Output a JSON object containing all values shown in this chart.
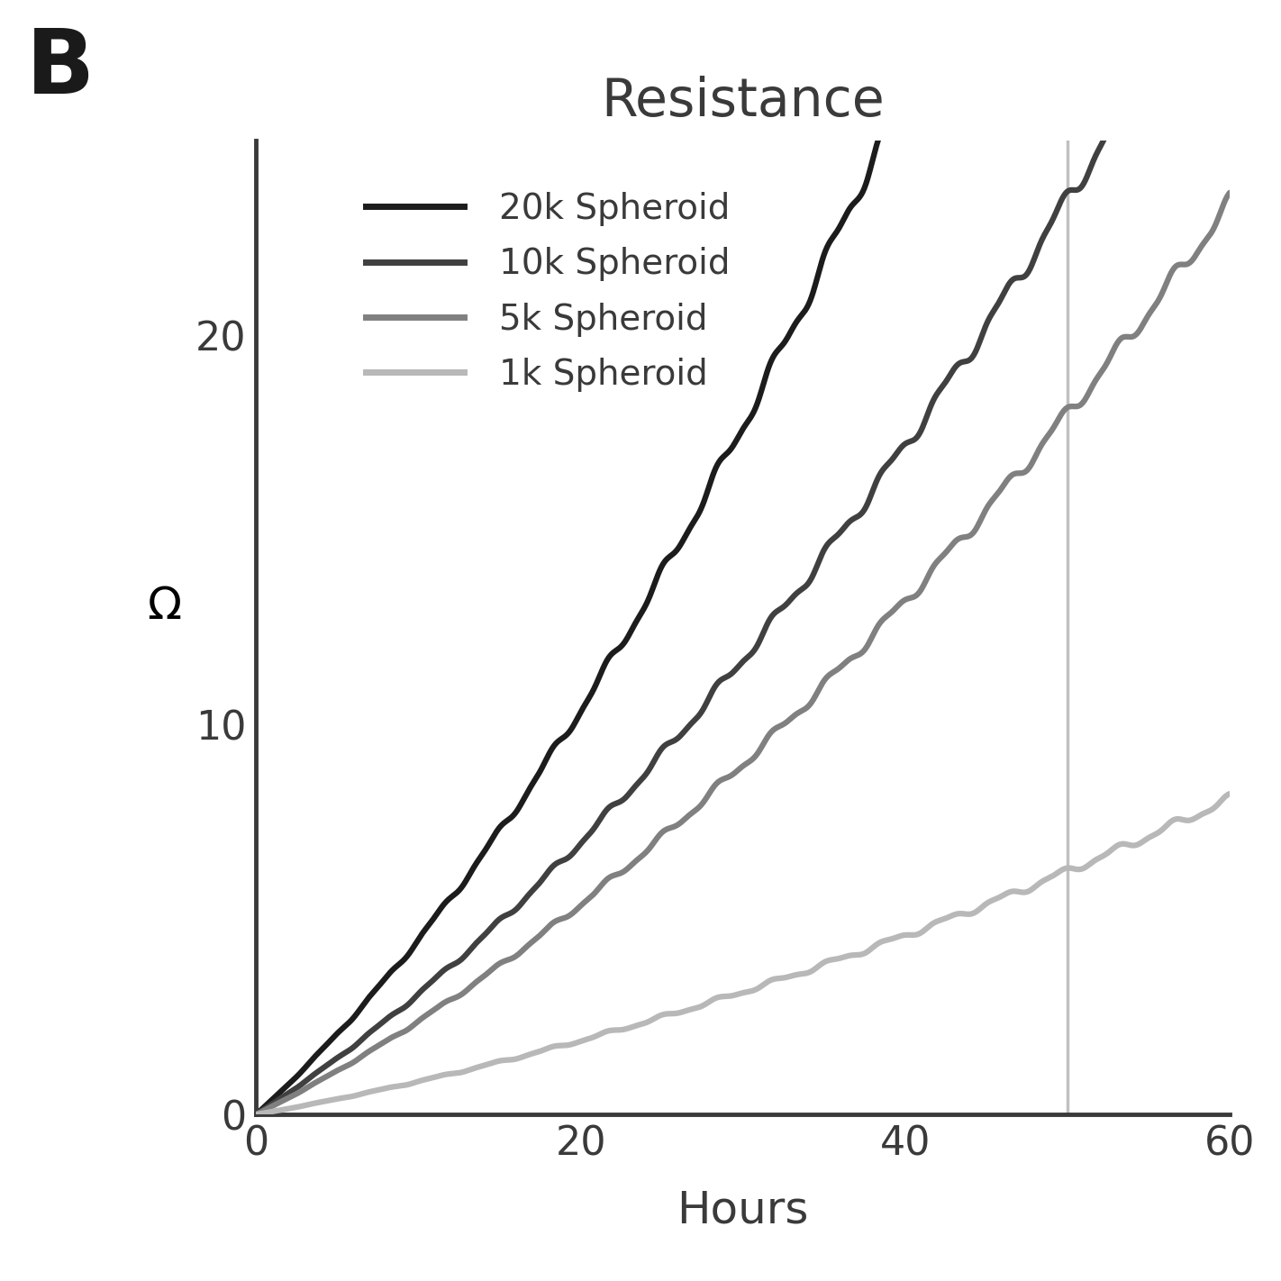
{
  "title": "Resistance",
  "panel_label": "B",
  "xlabel": "Hours",
  "ylabel": "Ω",
  "xlim": [
    0,
    60
  ],
  "ylim": [
    0,
    25
  ],
  "xticks": [
    0,
    20,
    40,
    60
  ],
  "yticks": [
    0,
    10,
    20
  ],
  "vline_x": 50,
  "vline_color": "#c0c0c0",
  "background_color": "#ffffff",
  "series": [
    {
      "label": "20k Spheroid",
      "color": "#1c1c1c",
      "linewidth": 4.5,
      "a": 0.007,
      "b": 0.38,
      "c": 0.0,
      "noise_amp": 0.18,
      "noise_freq": 1.8
    },
    {
      "label": "10k Spheroid",
      "color": "#404040",
      "linewidth": 4.5,
      "a": 0.004,
      "b": 0.27,
      "c": 0.0,
      "noise_amp": 0.13,
      "noise_freq": 1.8
    },
    {
      "label": "5k Spheroid",
      "color": "#808080",
      "linewidth": 4.5,
      "a": 0.003,
      "b": 0.21,
      "c": 0.0,
      "noise_amp": 0.1,
      "noise_freq": 1.8
    },
    {
      "label": "1k Spheroid",
      "color": "#b8b8b8",
      "linewidth": 4.5,
      "a": 0.001,
      "b": 0.075,
      "c": 0.0,
      "noise_amp": 0.05,
      "noise_freq": 1.8
    }
  ],
  "title_fontsize": 42,
  "label_fontsize": 36,
  "tick_fontsize": 32,
  "legend_fontsize": 28,
  "panel_label_fontsize": 72,
  "axis_color": "#3a3a3a",
  "tick_color": "#3a3a3a"
}
